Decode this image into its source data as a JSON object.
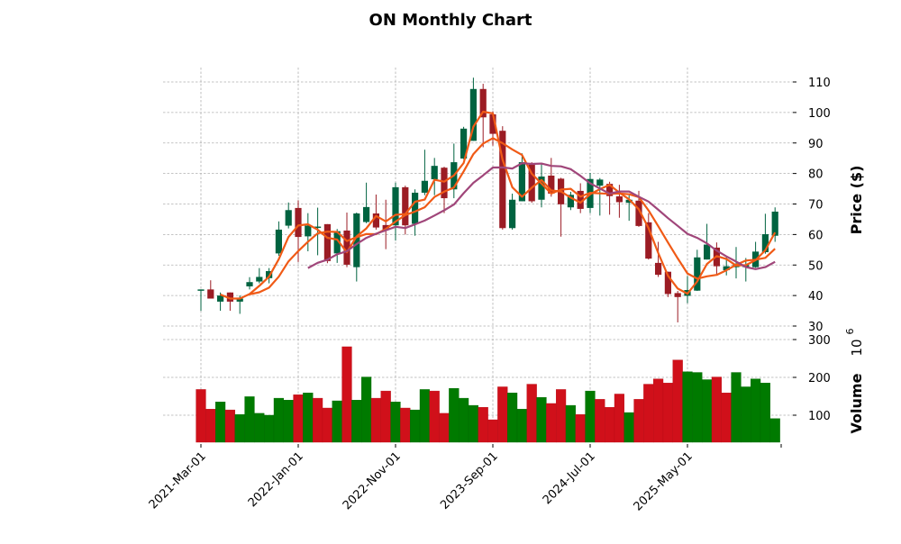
{
  "chart_data": {
    "type": "candlestick",
    "title": "ON Monthly Chart",
    "ylabel": "Price ($)",
    "ylabel_volume": "Volume",
    "volume_exponent_base": "10",
    "volume_exponent_power": "6",
    "ylim": [
      28,
      115
    ],
    "vol_ylim": [
      36,
      300
    ],
    "yticks": [
      30,
      40,
      50,
      60,
      70,
      80,
      90,
      100,
      110
    ],
    "vol_yticks": [
      100,
      200,
      300
    ],
    "xtick_indices": [
      0,
      10,
      20,
      30,
      40,
      50
    ],
    "xtick_labels": [
      "2021-Mar-01",
      "2022-Jan-01",
      "2022-Nov-01",
      "2023-Sep-01",
      "2024-Jul-01",
      "2025-May-01"
    ],
    "mav": [
      3,
      6,
      12
    ],
    "colors": {
      "up": "#006340",
      "down": "#9b1c24",
      "vol_up": "#007a00",
      "vol_down": "#d0101a",
      "mav": [
        "#f05a16",
        "#f05a16",
        "#a0467a"
      ]
    },
    "ohlc": [
      [
        42,
        42,
        35,
        42
      ],
      [
        42,
        45,
        39,
        39
      ],
      [
        38,
        41,
        35,
        40
      ],
      [
        41,
        41,
        35,
        38
      ],
      [
        38,
        40,
        34,
        39
      ],
      [
        43,
        46,
        42,
        44.4
      ],
      [
        44.6,
        49,
        44,
        46.1
      ],
      [
        45.7,
        49,
        44,
        48
      ],
      [
        53.8,
        64.3,
        53,
        61.6
      ],
      [
        62.9,
        70.5,
        62,
        68
      ],
      [
        68.7,
        71.2,
        51,
        59.2
      ],
      [
        59.4,
        67,
        54.5,
        62.9
      ],
      [
        62.6,
        68.8,
        53.2,
        62.6
      ],
      [
        63.4,
        63.4,
        50.6,
        51.3
      ],
      [
        53.8,
        61.8,
        50.7,
        61.1
      ],
      [
        61.3,
        67.2,
        49.3,
        50.1
      ],
      [
        49.3,
        67.2,
        44.6,
        66.9
      ],
      [
        64.1,
        77,
        63.7,
        69
      ],
      [
        66.9,
        73.1,
        61.6,
        62.3
      ],
      [
        63.1,
        71.4,
        55.2,
        61.6
      ],
      [
        63,
        77,
        58,
        75.5
      ],
      [
        75.5,
        76,
        60,
        63
      ],
      [
        63.5,
        74.8,
        59.6,
        73.7
      ],
      [
        73.7,
        87.8,
        72.9,
        77.6
      ],
      [
        78.1,
        85.1,
        72.9,
        82.5
      ],
      [
        81.9,
        82.2,
        67,
        71.9
      ],
      [
        74.8,
        89.8,
        71.9,
        83.7
      ],
      [
        84.9,
        95.3,
        84.7,
        94.7
      ],
      [
        90.7,
        111.4,
        90.7,
        107.7
      ],
      [
        107.7,
        109.4,
        88.6,
        98.4
      ],
      [
        99.4,
        100.4,
        89.1,
        93
      ],
      [
        94,
        95.5,
        61.6,
        62.1
      ],
      [
        62.1,
        73.4,
        61.6,
        71.4
      ],
      [
        70.9,
        86.6,
        70.9,
        83.7
      ],
      [
        82.9,
        83.7,
        70.4,
        70.9
      ],
      [
        71.4,
        83.2,
        68.9,
        79
      ],
      [
        79.3,
        85.1,
        72.4,
        73.4
      ],
      [
        78.3,
        78.6,
        59.3,
        69.9
      ],
      [
        68.9,
        74,
        68,
        73
      ],
      [
        74.3,
        76.8,
        67,
        68.4
      ],
      [
        68.7,
        80.2,
        67,
        78.2
      ],
      [
        76,
        78.5,
        66.2,
        78
      ],
      [
        76.6,
        77.3,
        66.5,
        72.6
      ],
      [
        72.5,
        76.3,
        65.5,
        70.6
      ],
      [
        70.4,
        72.8,
        64.5,
        71.4
      ],
      [
        71.1,
        74.3,
        62.5,
        62.8
      ],
      [
        64,
        67,
        51.8,
        52.1
      ],
      [
        50.7,
        57.6,
        46.1,
        46.8
      ],
      [
        47.8,
        47.8,
        39.5,
        40.5
      ],
      [
        40.8,
        41.5,
        31.2,
        39.5
      ],
      [
        39.9,
        46.4,
        37.5,
        41.8
      ],
      [
        41.6,
        55,
        41.5,
        52.5
      ],
      [
        51.8,
        63.5,
        51.8,
        56.7
      ],
      [
        55.7,
        57.4,
        46.6,
        49.6
      ],
      [
        48.3,
        52.5,
        46.6,
        49.6
      ],
      [
        49.3,
        55.9,
        45.6,
        50.3
      ],
      [
        49.3,
        52.3,
        44.6,
        50
      ],
      [
        49.3,
        57.6,
        49.1,
        54.4
      ],
      [
        54.2,
        66.8,
        53.7,
        60.1
      ],
      [
        59.6,
        68.9,
        57.6,
        67.5
      ]
    ],
    "volume": [
      168,
      116,
      135,
      114,
      102,
      149,
      105,
      100,
      145,
      140,
      154,
      159,
      145,
      119,
      138,
      281,
      140,
      201,
      145,
      164,
      135,
      119,
      114,
      168,
      164,
      105,
      171,
      145,
      126,
      121,
      88,
      175,
      159,
      116,
      182,
      147,
      131,
      168,
      126,
      102,
      164,
      142,
      121,
      156,
      107,
      142,
      182,
      196,
      185,
      246,
      215,
      213,
      194,
      201,
      159,
      213,
      175,
      196,
      185,
      91
    ],
    "volume_up": [
      0,
      0,
      1,
      0,
      1,
      1,
      1,
      1,
      1,
      1,
      0,
      1,
      0,
      0,
      1,
      0,
      1,
      1,
      0,
      0,
      1,
      0,
      1,
      1,
      0,
      0,
      1,
      1,
      1,
      0,
      0,
      0,
      1,
      1,
      0,
      1,
      0,
      0,
      1,
      0,
      1,
      0,
      0,
      0,
      1,
      0,
      0,
      0,
      0,
      0,
      1,
      1,
      1,
      0,
      0,
      1,
      1,
      1,
      1,
      1
    ]
  }
}
